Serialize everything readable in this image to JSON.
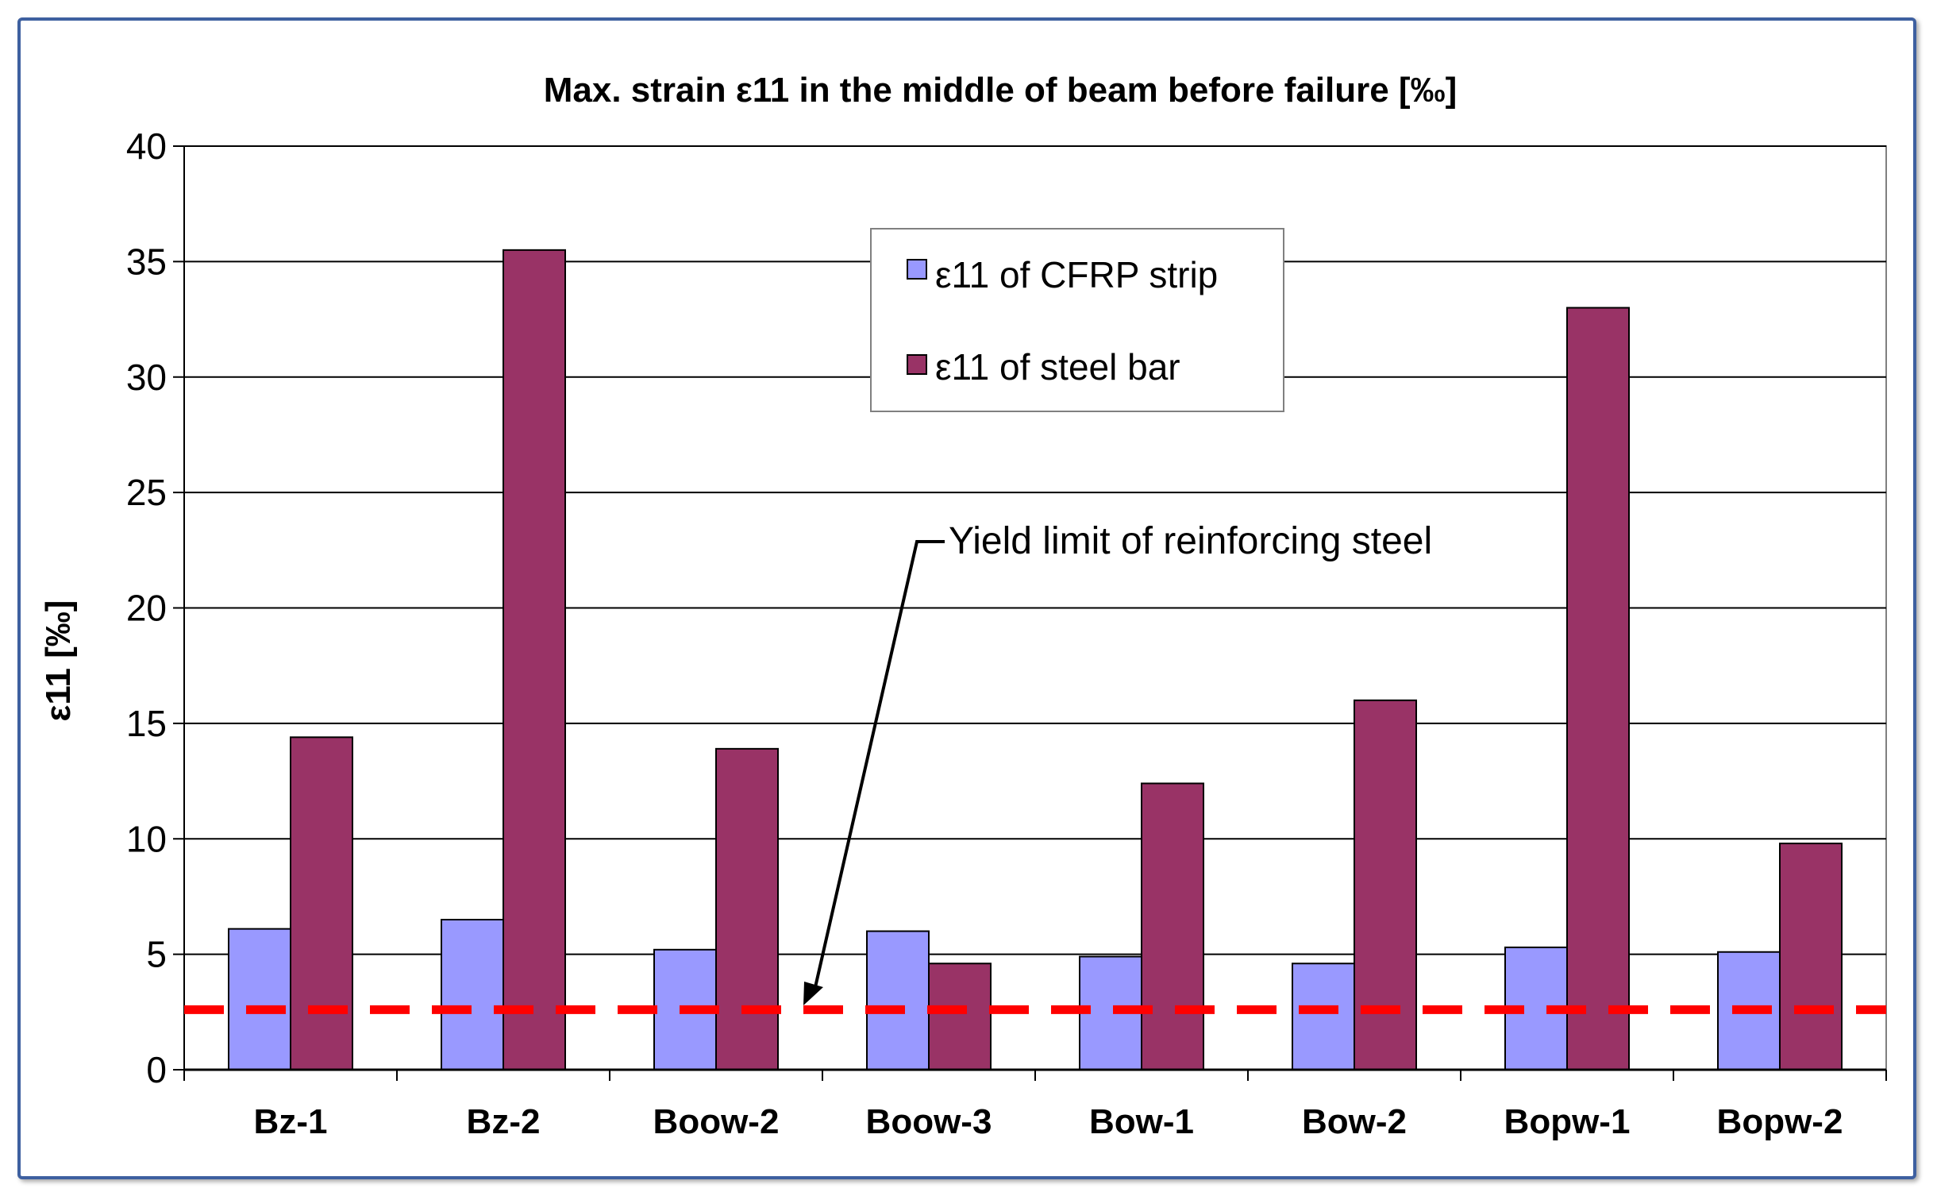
{
  "chart_data": {
    "type": "bar",
    "title": "Max. strain ε11 in the middle of beam before failure [‰]",
    "xlabel": "",
    "ylabel": "ε11 [‰]",
    "ylim": [
      0,
      40
    ],
    "yticks": [
      0,
      5,
      10,
      15,
      20,
      25,
      30,
      35,
      40
    ],
    "grid": true,
    "categories": [
      "Bz-1",
      "Bz-2",
      "Boow-2",
      "Boow-3",
      "Bow-1",
      "Bow-2",
      "Bopw-1",
      "Bopw-2"
    ],
    "series": [
      {
        "name": "ε11 of CFRP strip",
        "color": "#9999ff",
        "values": [
          6.1,
          6.5,
          5.2,
          6.0,
          4.9,
          4.6,
          5.3,
          5.1
        ]
      },
      {
        "name": "ε11 of steel bar",
        "color": "#993366",
        "values": [
          14.4,
          35.5,
          13.9,
          4.6,
          12.4,
          16.0,
          33.0,
          9.8
        ]
      }
    ],
    "legend_position": "top-center",
    "reference_line": {
      "value": 2.6,
      "color": "#ff0000",
      "style": "dashed"
    },
    "annotation": {
      "text": "Yield limit of reinforcing steel"
    }
  }
}
